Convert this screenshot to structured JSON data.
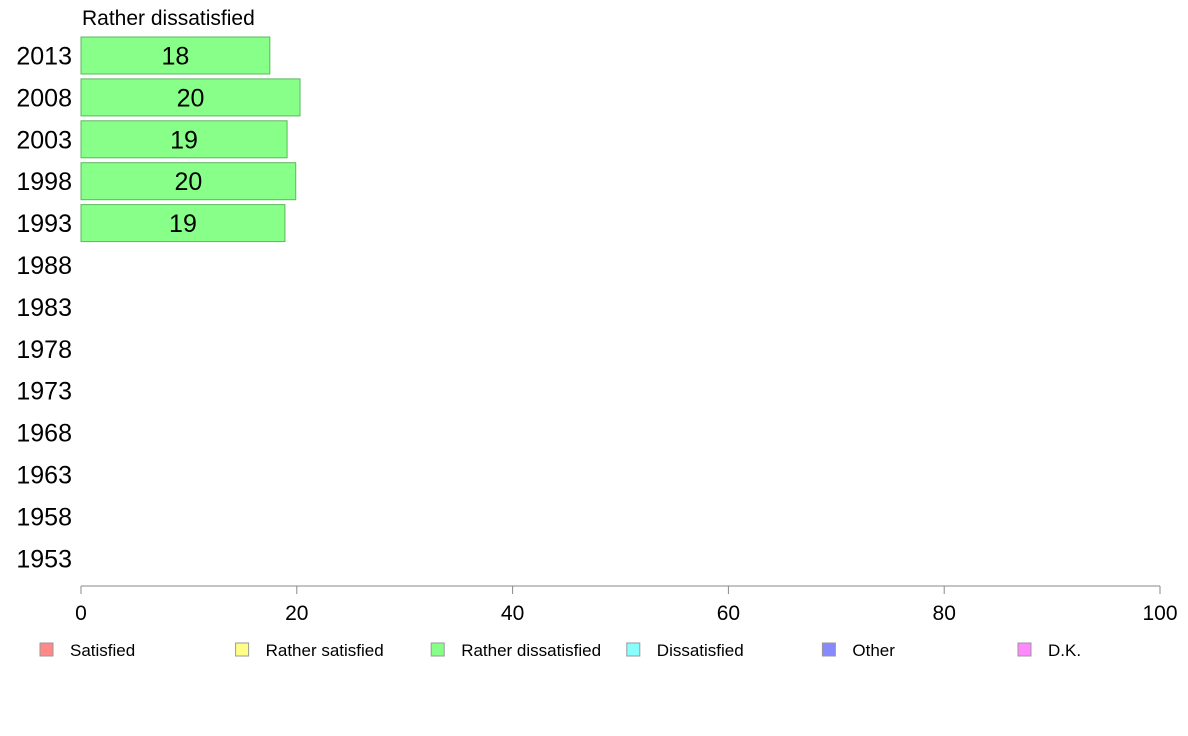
{
  "chart_data": {
    "type": "bar",
    "orientation": "horizontal",
    "title": "Rather dissatisfied",
    "categories": [
      "2013",
      "2008",
      "2003",
      "1998",
      "1993",
      "1988",
      "1983",
      "1978",
      "1973",
      "1968",
      "1963",
      "1958",
      "1953"
    ],
    "series": [
      {
        "name": "Rather dissatisfied",
        "values": [
          18,
          20,
          19,
          20,
          19,
          null,
          null,
          null,
          null,
          null,
          null,
          null,
          null
        ],
        "exact_values": [
          17.5,
          20.3,
          19.1,
          19.9,
          18.9,
          null,
          null,
          null,
          null,
          null,
          null,
          null,
          null
        ],
        "color": "#88ff88"
      }
    ],
    "xlim": [
      0,
      100
    ],
    "xticks": [
      0,
      20,
      40,
      60,
      80,
      100
    ],
    "grid": false,
    "legend": {
      "placement": "bottom",
      "items": [
        {
          "label": "Satisfied",
          "color": "#ff8888"
        },
        {
          "label": "Rather satisfied",
          "color": "#ffff88"
        },
        {
          "label": "Rather dissatisfied",
          "color": "#88ff88"
        },
        {
          "label": "Dissatisfied",
          "color": "#88ffff"
        },
        {
          "label": "Other",
          "color": "#8888ff"
        },
        {
          "label": "D.K.",
          "color": "#ff88ff"
        }
      ]
    }
  }
}
